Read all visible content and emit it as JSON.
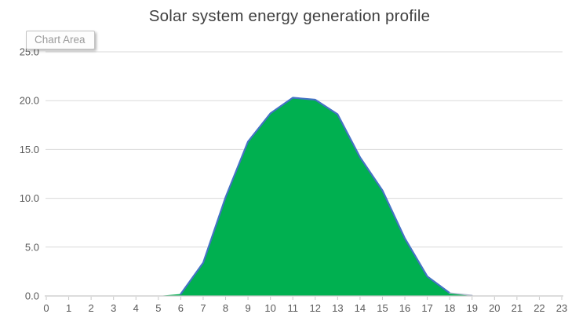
{
  "tooltip": {
    "label": "Chart Area"
  },
  "chart_data": {
    "type": "area",
    "title": "Solar system energy generation profile",
    "categories": [
      "0",
      "1",
      "2",
      "3",
      "4",
      "5",
      "6",
      "7",
      "8",
      "9",
      "10",
      "11",
      "12",
      "13",
      "14",
      "15",
      "16",
      "17",
      "18",
      "19",
      "20",
      "21",
      "22",
      "23"
    ],
    "values": [
      0,
      0,
      0,
      0,
      0,
      0,
      0.2,
      3.4,
      10.1,
      15.8,
      18.7,
      20.3,
      20.1,
      18.6,
      14.2,
      10.8,
      5.9,
      2.0,
      0.3,
      0,
      0,
      0,
      0,
      0
    ],
    "xlabel": "",
    "ylabel": "",
    "ylim": [
      0,
      25
    ],
    "y_tick_step": 5,
    "y_tick_labels": [
      "0.0",
      "5.0",
      "10.0",
      "15.0",
      "20.0",
      "25.0"
    ],
    "grid": "horizontal",
    "legend": false,
    "colors": {
      "area_fill": "#00B050",
      "line": "#4472C4",
      "line_fade_tail": "#AEB9CC",
      "gridline": "#D9D9D9",
      "axis": "#C8C8C8",
      "tick_label": "#595959",
      "title": "#404040"
    }
  }
}
